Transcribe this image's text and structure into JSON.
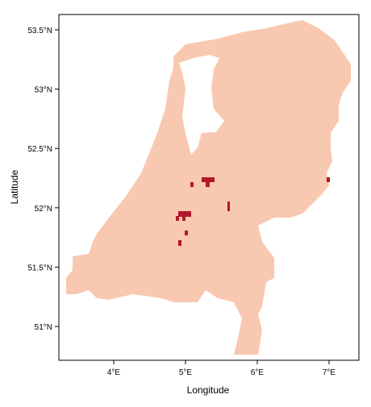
{
  "chart_data": {
    "type": "map",
    "xlabel": "Longitude",
    "ylabel": "Latitude",
    "xlim": [
      3.236,
      7.416
    ],
    "ylim": [
      50.715,
      53.629
    ],
    "xticks": [
      {
        "value": 4,
        "label": "4°E"
      },
      {
        "value": 5,
        "label": "5°E"
      },
      {
        "value": 6,
        "label": "6°E"
      },
      {
        "value": 7,
        "label": "7°E"
      }
    ],
    "yticks": [
      {
        "value": 51,
        "label": "51°N"
      },
      {
        "value": 51.5,
        "label": "51.5°N"
      },
      {
        "value": 52,
        "label": "52°N"
      },
      {
        "value": 52.5,
        "label": "52.5°N"
      },
      {
        "value": 53,
        "label": "53°N"
      },
      {
        "value": 53.5,
        "label": "53.5°N"
      }
    ]
  }
}
